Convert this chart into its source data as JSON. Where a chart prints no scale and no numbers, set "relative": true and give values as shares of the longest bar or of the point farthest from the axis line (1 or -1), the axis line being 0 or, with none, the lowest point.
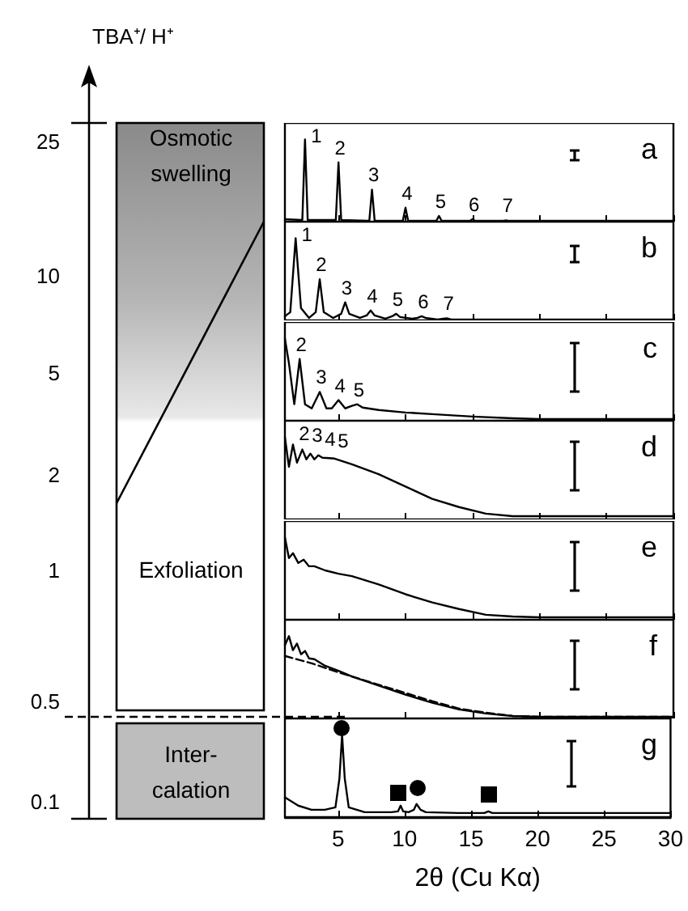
{
  "chart_data": [
    {
      "type": "other",
      "ylabel": "TBA⁺/ H⁺",
      "annotations": [
        "25",
        "10",
        "5",
        "2",
        "1",
        "0.5",
        "0.1",
        "Osmotic swelling",
        "Exfoliation",
        "Inter-calation"
      ]
    },
    {
      "type": "line",
      "title": "a",
      "relative": true,
      "xlim": [
        1,
        30
      ],
      "xticks": [
        5,
        10,
        15,
        20,
        25,
        30
      ],
      "tick_labels": false,
      "marker": "none",
      "annotations": [
        "1",
        "2",
        "3",
        "4",
        "5",
        "6",
        "7"
      ],
      "series": [
        {
          "color": "#000000",
          "x": [
            1,
            2.3,
            2.5,
            2.7,
            4.8,
            5.0,
            5.2,
            7.3,
            7.5,
            7.7,
            9.8,
            10,
            10.2,
            12.3,
            12.5,
            12.7,
            14.8,
            15,
            15.2,
            17.3,
            17.5,
            17.7,
            30
          ],
          "values": [
            0.03,
            0.02,
            1,
            0.02,
            0.02,
            0.72,
            0.02,
            0.01,
            0.39,
            0.01,
            0.01,
            0.17,
            0.01,
            0.01,
            0.07,
            0.01,
            0.01,
            0.03,
            0.01,
            0.01,
            0.015,
            0.01,
            0.01
          ]
        }
      ]
    },
    {
      "type": "line",
      "title": "b",
      "relative": true,
      "xlim": [
        1,
        30
      ],
      "xticks": [
        5,
        10,
        15,
        20,
        25,
        30
      ],
      "tick_labels": false,
      "marker": "none",
      "annotations": [
        "1",
        "2",
        "3",
        "4",
        "5",
        "6",
        "7"
      ],
      "series": [
        {
          "color": "#000000",
          "x": [
            1,
            1.4,
            1.8,
            2.2,
            2.8,
            3.3,
            3.6,
            3.9,
            4.6,
            5.2,
            5.5,
            5.8,
            6.6,
            7.1,
            7.4,
            7.7,
            8.5,
            9.0,
            9.3,
            9.6,
            10.5,
            10.9,
            11.2,
            11.5,
            12.4,
            12.8,
            13.1,
            13.4,
            15,
            20,
            30
          ],
          "values": [
            0.05,
            0.1,
            1,
            0.15,
            0.03,
            0.1,
            0.5,
            0.1,
            0.03,
            0.08,
            0.22,
            0.08,
            0.03,
            0.06,
            0.12,
            0.06,
            0.02,
            0.05,
            0.08,
            0.04,
            0.02,
            0.03,
            0.05,
            0.03,
            0.01,
            0.02,
            0.025,
            0.01,
            0.01,
            0.01,
            0.01
          ]
        }
      ]
    },
    {
      "type": "line",
      "title": "c",
      "relative": true,
      "xlim": [
        1,
        30
      ],
      "xticks": [
        5,
        10,
        15,
        20,
        25,
        30
      ],
      "tick_labels": false,
      "marker": "none",
      "annotations": [
        "2",
        "3",
        "4",
        "5"
      ],
      "series": [
        {
          "color": "#000000",
          "x": [
            1,
            1.3,
            1.7,
            2.1,
            2.5,
            3.0,
            3.6,
            4.1,
            4.5,
            5.0,
            5.5,
            6.0,
            6.4,
            6.8,
            8,
            10,
            12,
            15,
            18,
            20,
            25,
            30
          ],
          "values": [
            1,
            0.7,
            0.2,
            0.75,
            0.2,
            0.15,
            0.35,
            0.15,
            0.15,
            0.25,
            0.15,
            0.18,
            0.2,
            0.16,
            0.13,
            0.1,
            0.08,
            0.05,
            0.03,
            0.02,
            0.02,
            0.02
          ]
        }
      ]
    },
    {
      "type": "line",
      "title": "d",
      "relative": true,
      "xlim": [
        1,
        30
      ],
      "xticks": [
        5,
        10,
        15,
        20,
        25,
        30
      ],
      "tick_labels": false,
      "marker": "none",
      "annotations": [
        "2",
        "3",
        "4",
        "5"
      ],
      "series": [
        {
          "color": "#000000",
          "x": [
            1,
            1.3,
            1.6,
            1.9,
            2.3,
            2.6,
            2.9,
            3.2,
            3.5,
            3.8,
            4.3,
            4.7,
            6,
            8,
            10,
            12,
            14,
            16,
            18,
            20,
            25,
            30
          ],
          "values": [
            1,
            0.64,
            0.91,
            0.69,
            0.85,
            0.73,
            0.8,
            0.73,
            0.78,
            0.75,
            0.745,
            0.74,
            0.67,
            0.55,
            0.4,
            0.25,
            0.15,
            0.07,
            0.04,
            0.04,
            0.04,
            0.04
          ]
        }
      ]
    },
    {
      "type": "line",
      "title": "e",
      "relative": true,
      "xlim": [
        1,
        30
      ],
      "xticks": [
        5,
        10,
        15,
        20,
        25,
        30
      ],
      "tick_labels": false,
      "marker": "none",
      "series": [
        {
          "color": "#000000",
          "x": [
            1,
            1.3,
            1.6,
            2,
            2.4,
            2.8,
            3.2,
            4,
            5,
            6,
            8,
            10,
            12,
            14,
            16,
            18,
            20,
            25,
            30
          ],
          "values": [
            1,
            0.75,
            0.81,
            0.69,
            0.73,
            0.65,
            0.65,
            0.6,
            0.56,
            0.53,
            0.43,
            0.31,
            0.21,
            0.13,
            0.06,
            0.04,
            0.03,
            0.03,
            0.03
          ]
        }
      ]
    },
    {
      "type": "line",
      "title": "f",
      "relative": true,
      "xlim": [
        1,
        30
      ],
      "xticks": [
        5,
        10,
        15,
        20,
        25,
        30
      ],
      "tick_labels": false,
      "marker": "none",
      "series": [
        {
          "color": "#000000",
          "x": [
            1,
            1.3,
            1.6,
            1.9,
            2.2,
            2.5,
            2.8,
            3.2,
            4,
            5,
            6,
            8,
            10,
            12,
            14,
            16,
            18,
            20,
            25,
            30
          ],
          "values": [
            0.89,
            1,
            0.83,
            0.91,
            0.78,
            0.82,
            0.73,
            0.72,
            0.64,
            0.58,
            0.51,
            0.4,
            0.29,
            0.19,
            0.11,
            0.06,
            0.03,
            0.02,
            0.02,
            0.02
          ]
        },
        {
          "color": "#000000",
          "line_style": "dashed",
          "x": [
            1,
            3,
            5,
            8,
            10,
            12,
            14,
            16,
            18,
            20,
            25,
            30
          ],
          "values": [
            0.76,
            0.67,
            0.56,
            0.41,
            0.31,
            0.21,
            0.12,
            0.07,
            0.03,
            0.02,
            0.02,
            0.02
          ]
        }
      ]
    },
    {
      "type": "line",
      "title": "g",
      "relative": true,
      "xlabel": "2θ (Cu Kα)",
      "xlim": [
        1,
        30
      ],
      "xticks": [
        5,
        10,
        15,
        20,
        25,
        30
      ],
      "tick_labels": "x",
      "marker": "none",
      "series": [
        {
          "color": "#000000",
          "x": [
            1,
            2,
            3,
            4,
            4.8,
            5.1,
            5.3,
            5.5,
            5.8,
            7,
            9,
            9.5,
            9.7,
            9.9,
            10.3,
            10.7,
            10.9,
            11.2,
            11.6,
            14,
            16,
            16.3,
            16.6,
            18,
            20,
            25,
            30
          ],
          "values": [
            0.24,
            0.14,
            0.09,
            0.09,
            0.12,
            0.47,
            1,
            0.47,
            0.12,
            0.06,
            0.06,
            0.07,
            0.14,
            0.07,
            0.06,
            0.09,
            0.16,
            0.09,
            0.06,
            0.05,
            0.05,
            0.07,
            0.05,
            0.05,
            0.05,
            0.05,
            0.05
          ]
        }
      ]
    }
  ]
}
